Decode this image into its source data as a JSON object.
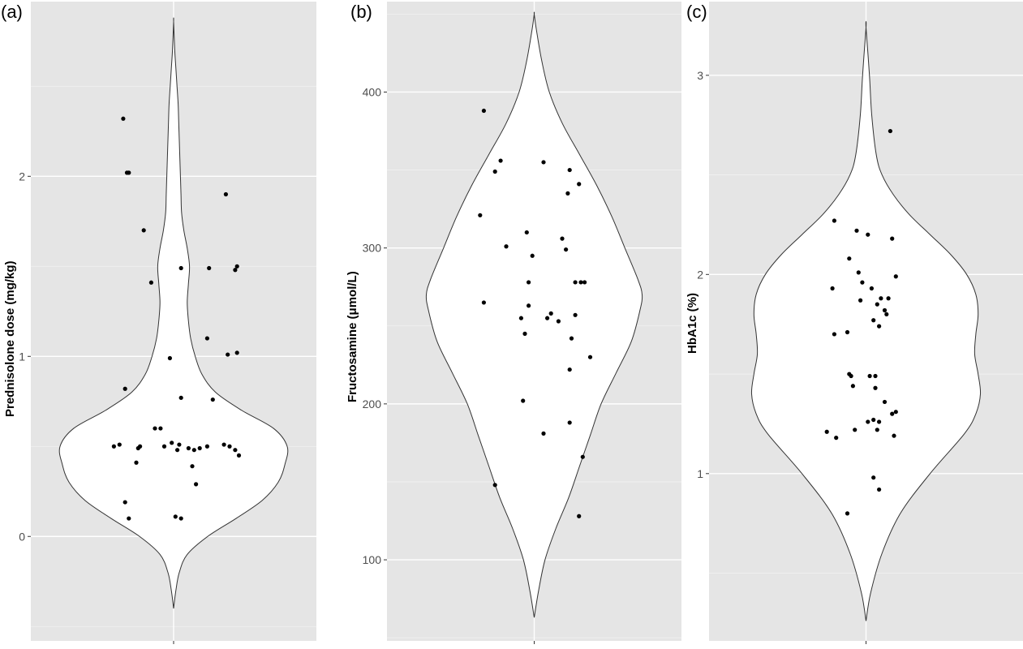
{
  "chart_data": [
    {
      "type": "violin",
      "panel_label": "(a)",
      "ylabel": "Prednisolone dose (mg/kg)",
      "ylim": [
        -0.58,
        2.97
      ],
      "yticks": [
        0,
        1,
        2
      ],
      "ytick_labels": [
        "0",
        "1",
        "2"
      ],
      "grid": true,
      "violin_min": -0.4,
      "violin_max": 2.86,
      "density": [
        [
          -0.4,
          0.0
        ],
        [
          -0.3,
          0.02
        ],
        [
          -0.2,
          0.05
        ],
        [
          -0.1,
          0.12
        ],
        [
          0.0,
          0.3
        ],
        [
          0.1,
          0.55
        ],
        [
          0.2,
          0.78
        ],
        [
          0.3,
          0.92
        ],
        [
          0.4,
          0.98
        ],
        [
          0.5,
          1.0
        ],
        [
          0.6,
          0.88
        ],
        [
          0.7,
          0.6
        ],
        [
          0.8,
          0.37
        ],
        [
          0.9,
          0.25
        ],
        [
          1.0,
          0.19
        ],
        [
          1.1,
          0.15
        ],
        [
          1.2,
          0.13
        ],
        [
          1.3,
          0.12
        ],
        [
          1.4,
          0.13
        ],
        [
          1.5,
          0.14
        ],
        [
          1.6,
          0.12
        ],
        [
          1.7,
          0.09
        ],
        [
          1.8,
          0.07
        ],
        [
          1.9,
          0.065
        ],
        [
          2.0,
          0.06
        ],
        [
          2.1,
          0.055
        ],
        [
          2.2,
          0.05
        ],
        [
          2.3,
          0.045
        ],
        [
          2.4,
          0.04
        ],
        [
          2.5,
          0.03
        ],
        [
          2.6,
          0.02
        ],
        [
          2.7,
          0.01
        ],
        [
          2.86,
          0.0
        ]
      ],
      "points": [
        [
          -0.27,
          2.32
        ],
        [
          -0.25,
          2.02
        ],
        [
          -0.24,
          2.02
        ],
        [
          -0.16,
          1.7
        ],
        [
          -0.12,
          1.41
        ],
        [
          0.04,
          1.49
        ],
        [
          0.19,
          1.49
        ],
        [
          0.33,
          1.48
        ],
        [
          0.34,
          1.5
        ],
        [
          0.28,
          1.9
        ],
        [
          0.18,
          1.1
        ],
        [
          0.29,
          1.01
        ],
        [
          0.34,
          1.02
        ],
        [
          -0.02,
          0.99
        ],
        [
          -0.26,
          0.82
        ],
        [
          0.04,
          0.77
        ],
        [
          0.21,
          0.76
        ],
        [
          -0.32,
          0.5
        ],
        [
          -0.29,
          0.51
        ],
        [
          -0.19,
          0.49
        ],
        [
          -0.18,
          0.5
        ],
        [
          -0.1,
          0.6
        ],
        [
          -0.07,
          0.6
        ],
        [
          -0.05,
          0.5
        ],
        [
          -0.01,
          0.52
        ],
        [
          0.02,
          0.48
        ],
        [
          0.03,
          0.51
        ],
        [
          0.08,
          0.49
        ],
        [
          0.11,
          0.48
        ],
        [
          0.14,
          0.49
        ],
        [
          0.18,
          0.5
        ],
        [
          0.27,
          0.51
        ],
        [
          0.3,
          0.5
        ],
        [
          0.33,
          0.48
        ],
        [
          0.35,
          0.45
        ],
        [
          -0.2,
          0.41
        ],
        [
          0.1,
          0.39
        ],
        [
          0.12,
          0.29
        ],
        [
          -0.26,
          0.19
        ],
        [
          -0.24,
          0.1
        ],
        [
          0.01,
          0.11
        ],
        [
          0.04,
          0.1
        ]
      ]
    },
    {
      "type": "violin",
      "panel_label": "(b)",
      "ylabel": "Fructosamine (μmol/L)",
      "ylim": [
        48,
        458
      ],
      "yticks": [
        100,
        200,
        300,
        400
      ],
      "ytick_labels": [
        "100",
        "200",
        "300",
        "400"
      ],
      "grid": true,
      "violin_min": 63,
      "violin_max": 450,
      "density": [
        [
          63,
          0.0
        ],
        [
          80,
          0.04
        ],
        [
          100,
          0.1
        ],
        [
          120,
          0.2
        ],
        [
          140,
          0.32
        ],
        [
          160,
          0.42
        ],
        [
          180,
          0.52
        ],
        [
          200,
          0.62
        ],
        [
          220,
          0.76
        ],
        [
          240,
          0.9
        ],
        [
          260,
          0.98
        ],
        [
          270,
          1.0
        ],
        [
          280,
          0.96
        ],
        [
          300,
          0.84
        ],
        [
          320,
          0.72
        ],
        [
          340,
          0.58
        ],
        [
          360,
          0.42
        ],
        [
          380,
          0.26
        ],
        [
          400,
          0.14
        ],
        [
          420,
          0.07
        ],
        [
          440,
          0.02
        ],
        [
          450,
          0.0
        ]
      ],
      "points": [
        [
          -0.27,
          388
        ],
        [
          -0.29,
          321
        ],
        [
          -0.27,
          265
        ],
        [
          -0.21,
          349
        ],
        [
          -0.18,
          356
        ],
        [
          -0.15,
          301
        ],
        [
          -0.04,
          310
        ],
        [
          -0.01,
          295
        ],
        [
          -0.03,
          278
        ],
        [
          -0.03,
          263
        ],
        [
          -0.07,
          255
        ],
        [
          -0.05,
          245
        ],
        [
          0.05,
          355
        ],
        [
          0.07,
          255
        ],
        [
          0.09,
          258
        ],
        [
          0.13,
          253
        ],
        [
          0.15,
          306
        ],
        [
          0.17,
          299
        ],
        [
          0.18,
          335
        ],
        [
          0.19,
          350
        ],
        [
          0.2,
          242
        ],
        [
          0.22,
          278
        ],
        [
          0.25,
          278
        ],
        [
          0.22,
          257
        ],
        [
          0.24,
          341
        ],
        [
          0.27,
          278
        ],
        [
          0.3,
          230
        ],
        [
          0.19,
          222
        ],
        [
          -0.06,
          202
        ],
        [
          0.05,
          181
        ],
        [
          0.19,
          188
        ],
        [
          0.26,
          166
        ],
        [
          -0.21,
          148
        ],
        [
          0.24,
          128
        ]
      ]
    },
    {
      "type": "violin",
      "panel_label": "(c)",
      "ylabel": "HbA1c (%)",
      "ylim": [
        0.16,
        3.37
      ],
      "yticks": [
        1,
        2,
        3
      ],
      "ytick_labels": [
        "1",
        "2",
        "3"
      ],
      "grid": true,
      "violin_min": 0.26,
      "violin_max": 3.24,
      "density": [
        [
          0.26,
          0.0
        ],
        [
          0.4,
          0.04
        ],
        [
          0.6,
          0.14
        ],
        [
          0.8,
          0.3
        ],
        [
          1.0,
          0.56
        ],
        [
          1.2,
          0.86
        ],
        [
          1.3,
          0.96
        ],
        [
          1.4,
          1.0
        ],
        [
          1.5,
          0.98
        ],
        [
          1.6,
          0.95
        ],
        [
          1.7,
          0.96
        ],
        [
          1.8,
          0.98
        ],
        [
          1.9,
          0.96
        ],
        [
          2.0,
          0.88
        ],
        [
          2.1,
          0.74
        ],
        [
          2.2,
          0.56
        ],
        [
          2.3,
          0.38
        ],
        [
          2.4,
          0.24
        ],
        [
          2.5,
          0.14
        ],
        [
          2.6,
          0.09
        ],
        [
          2.8,
          0.05
        ],
        [
          3.0,
          0.03
        ],
        [
          3.24,
          0.0
        ]
      ],
      "points": [
        [
          0.13,
          2.72
        ],
        [
          -0.17,
          2.27
        ],
        [
          -0.05,
          2.22
        ],
        [
          0.01,
          2.2
        ],
        [
          0.14,
          2.18
        ],
        [
          -0.09,
          2.08
        ],
        [
          -0.04,
          2.01
        ],
        [
          0.16,
          1.99
        ],
        [
          -0.18,
          1.93
        ],
        [
          -0.02,
          1.96
        ],
        [
          0.03,
          1.93
        ],
        [
          0.08,
          1.88
        ],
        [
          0.12,
          1.88
        ],
        [
          0.06,
          1.85
        ],
        [
          0.1,
          1.82
        ],
        [
          0.11,
          1.8
        ],
        [
          -0.03,
          1.87
        ],
        [
          0.04,
          1.77
        ],
        [
          0.07,
          1.74
        ],
        [
          -0.17,
          1.7
        ],
        [
          -0.1,
          1.71
        ],
        [
          -0.09,
          1.5
        ],
        [
          -0.08,
          1.49
        ],
        [
          0.02,
          1.49
        ],
        [
          0.05,
          1.49
        ],
        [
          -0.07,
          1.44
        ],
        [
          0.05,
          1.43
        ],
        [
          0.1,
          1.36
        ],
        [
          0.16,
          1.31
        ],
        [
          0.14,
          1.3
        ],
        [
          0.04,
          1.27
        ],
        [
          0.07,
          1.26
        ],
        [
          0.01,
          1.26
        ],
        [
          0.06,
          1.22
        ],
        [
          -0.06,
          1.22
        ],
        [
          -0.21,
          1.21
        ],
        [
          -0.16,
          1.18
        ],
        [
          0.15,
          1.19
        ],
        [
          0.04,
          0.98
        ],
        [
          0.07,
          0.92
        ],
        [
          -0.1,
          0.8
        ]
      ]
    }
  ]
}
